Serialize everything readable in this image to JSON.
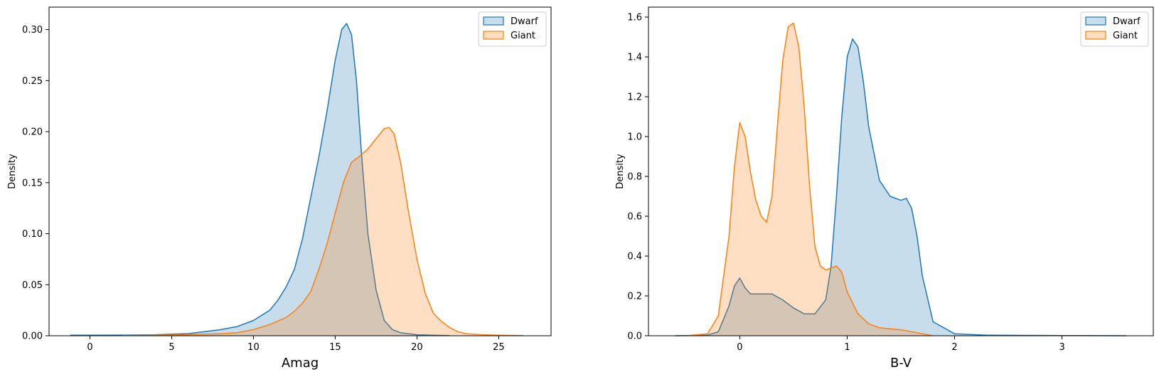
{
  "colors": {
    "dwarf": "#1f77b4",
    "giant": "#ff7f0e"
  },
  "chart_data": [
    {
      "type": "area",
      "title": "",
      "xlabel": "Amag",
      "ylabel": "Density",
      "xlim": [
        -2.5,
        28.2
      ],
      "ylim": [
        0,
        0.322
      ],
      "xticks": [
        0,
        5,
        10,
        15,
        20,
        25
      ],
      "yticks": [
        0.0,
        0.05,
        0.1,
        0.15,
        0.2,
        0.25,
        0.3
      ],
      "ytick_labels": [
        "0.00",
        "0.05",
        "0.10",
        "0.15",
        "0.20",
        "0.25",
        "0.30"
      ],
      "legend": "top-right",
      "grid": false,
      "series": [
        {
          "name": "Dwarf",
          "color": "#1f77b4",
          "x": [
            -1.2,
            0,
            2,
            4,
            5,
            6,
            7,
            8,
            9,
            10,
            10.5,
            11,
            11.5,
            12,
            12.5,
            13,
            13.5,
            14,
            14.5,
            15,
            15.4,
            15.7,
            16,
            16.3,
            16.6,
            17,
            17.5,
            18,
            18.5,
            19,
            20,
            21,
            22
          ],
          "y": [
            0.0005,
            0.0005,
            0.0006,
            0.001,
            0.0015,
            0.002,
            0.004,
            0.006,
            0.009,
            0.015,
            0.02,
            0.025,
            0.035,
            0.048,
            0.065,
            0.095,
            0.135,
            0.175,
            0.22,
            0.27,
            0.3,
            0.306,
            0.295,
            0.25,
            0.18,
            0.1,
            0.045,
            0.015,
            0.006,
            0.003,
            0.001,
            0.0005,
            0.0002
          ]
        },
        {
          "name": "Giant",
          "color": "#ff7f0e",
          "x": [
            2,
            4,
            6,
            8,
            9,
            10,
            11,
            12,
            12.5,
            13,
            13.5,
            14,
            14.5,
            15,
            15.5,
            16,
            16.5,
            17,
            17.5,
            18,
            18.3,
            18.6,
            19,
            19.5,
            20,
            20.5,
            21,
            21.5,
            22,
            22.5,
            23,
            24,
            25,
            26.5
          ],
          "y": [
            0.0002,
            0.0005,
            0.001,
            0.002,
            0.003,
            0.006,
            0.011,
            0.018,
            0.024,
            0.032,
            0.043,
            0.065,
            0.09,
            0.12,
            0.15,
            0.17,
            0.176,
            0.183,
            0.193,
            0.203,
            0.204,
            0.198,
            0.17,
            0.12,
            0.075,
            0.042,
            0.022,
            0.014,
            0.008,
            0.004,
            0.002,
            0.001,
            0.0005,
            0.0002
          ]
        }
      ]
    },
    {
      "type": "area",
      "title": "",
      "xlabel": "B-V",
      "ylabel": "Density",
      "xlim": [
        -0.85,
        3.85
      ],
      "ylim": [
        0,
        1.65
      ],
      "xticks": [
        0,
        1,
        2,
        3
      ],
      "yticks": [
        0.0,
        0.2,
        0.4,
        0.6,
        0.8,
        1.0,
        1.2,
        1.4,
        1.6
      ],
      "ytick_labels": [
        "0.0",
        "0.2",
        "0.4",
        "0.6",
        "0.8",
        "1.0",
        "1.2",
        "1.4",
        "1.6"
      ],
      "legend": "top-right",
      "grid": false,
      "series": [
        {
          "name": "Dwarf",
          "color": "#1f77b4",
          "x": [
            -0.6,
            -0.3,
            -0.2,
            -0.1,
            -0.05,
            0,
            0.05,
            0.1,
            0.2,
            0.3,
            0.4,
            0.5,
            0.6,
            0.7,
            0.8,
            0.85,
            0.9,
            0.95,
            1.0,
            1.05,
            1.1,
            1.15,
            1.2,
            1.3,
            1.4,
            1.5,
            1.55,
            1.6,
            1.65,
            1.7,
            1.8,
            2.0,
            2.3,
            3.0,
            3.6
          ],
          "y": [
            0.0,
            0.003,
            0.02,
            0.15,
            0.25,
            0.29,
            0.24,
            0.21,
            0.21,
            0.21,
            0.18,
            0.14,
            0.11,
            0.11,
            0.18,
            0.35,
            0.7,
            1.1,
            1.4,
            1.49,
            1.45,
            1.28,
            1.05,
            0.78,
            0.7,
            0.68,
            0.69,
            0.64,
            0.5,
            0.3,
            0.07,
            0.01,
            0.003,
            0.001,
            0.0
          ]
        },
        {
          "name": "Giant",
          "color": "#ff7f0e",
          "x": [
            -0.5,
            -0.3,
            -0.2,
            -0.1,
            -0.05,
            0,
            0.05,
            0.1,
            0.15,
            0.2,
            0.25,
            0.3,
            0.35,
            0.4,
            0.45,
            0.5,
            0.55,
            0.6,
            0.65,
            0.7,
            0.75,
            0.8,
            0.85,
            0.9,
            0.95,
            1.0,
            1.1,
            1.2,
            1.3,
            1.4,
            1.5,
            1.6,
            1.7,
            1.8
          ],
          "y": [
            0.0,
            0.01,
            0.1,
            0.5,
            0.85,
            1.07,
            1.0,
            0.82,
            0.68,
            0.6,
            0.57,
            0.7,
            1.05,
            1.38,
            1.55,
            1.57,
            1.45,
            1.15,
            0.75,
            0.45,
            0.35,
            0.33,
            0.34,
            0.35,
            0.32,
            0.22,
            0.11,
            0.06,
            0.04,
            0.035,
            0.03,
            0.02,
            0.01,
            0.0
          ]
        }
      ]
    }
  ]
}
